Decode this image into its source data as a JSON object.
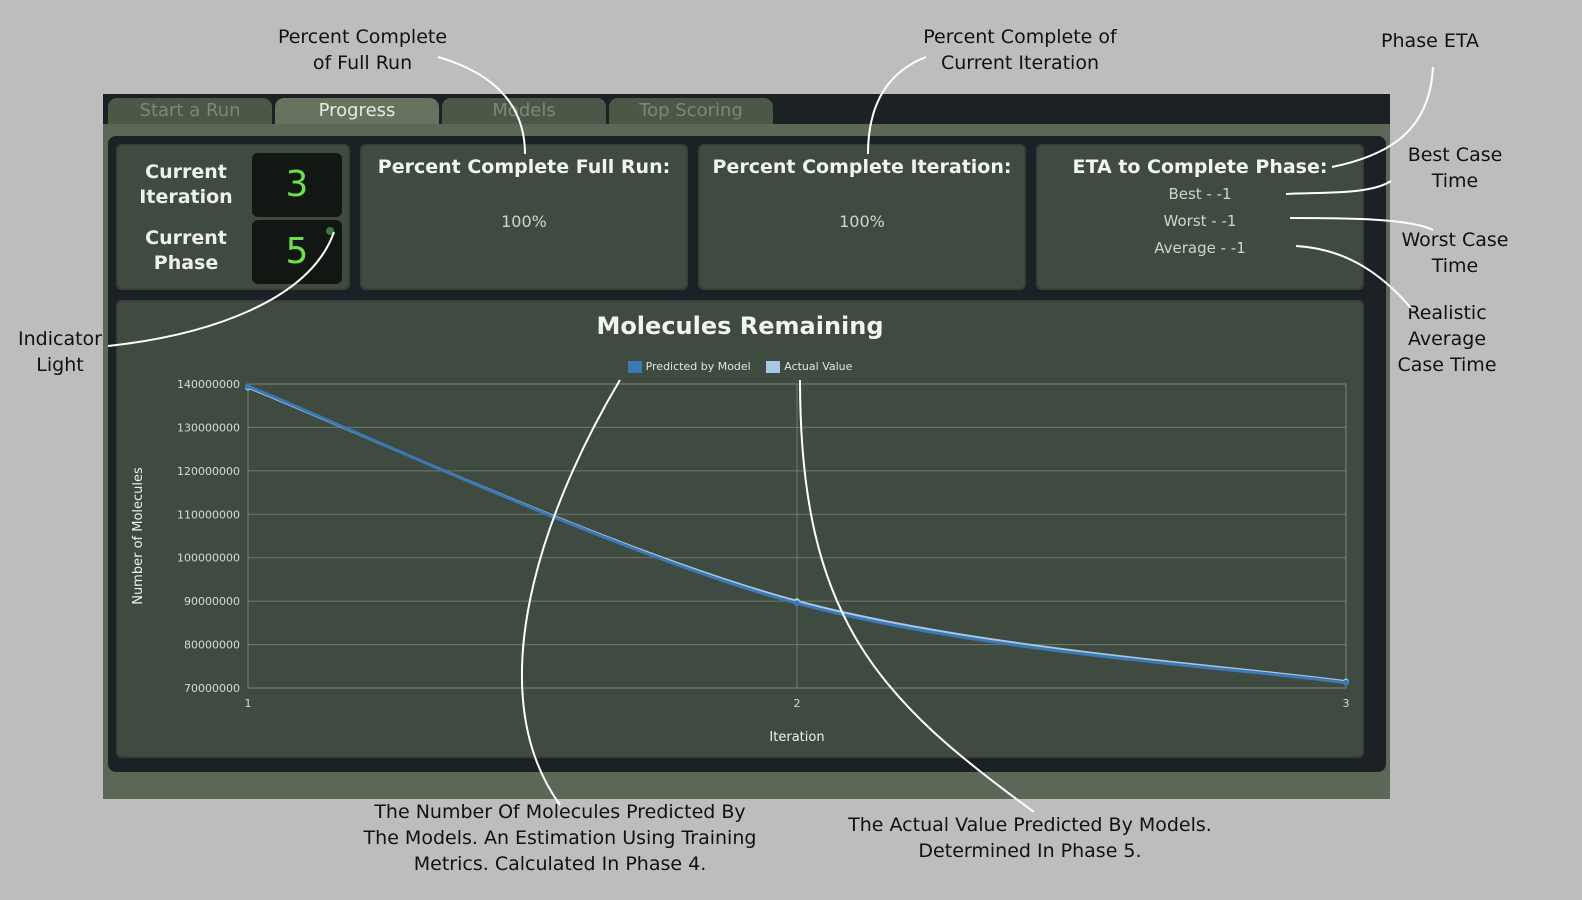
{
  "annotations": {
    "full_run": "Percent Complete\nof Full Run",
    "iteration": "Percent Complete of\nCurrent Iteration",
    "phase_eta": "Phase ETA",
    "best_case": "Best Case\nTime",
    "worst_case": "Worst Case\nTime",
    "average_case": "Realistic\nAverage\nCase Time",
    "indicator_light": "Indicator\nLight",
    "predicted_note": "The Number Of Molecules Predicted By\nThe Models. An Estimation Using Training\nMetrics. Calculated In Phase 4.",
    "actual_note": "The Actual Value Predicted By Models.\nDetermined In Phase 5."
  },
  "tabs": [
    {
      "label": "Start a Run",
      "active": false
    },
    {
      "label": "Progress",
      "active": true
    },
    {
      "label": "Models",
      "active": false
    },
    {
      "label": "Top Scoring",
      "active": false
    }
  ],
  "status": {
    "iteration_label": "Current\nIteration",
    "iteration_value": "3",
    "phase_label": "Current\nPhase",
    "phase_value": "5",
    "indicator_color": "#3a7a3c"
  },
  "full_run": {
    "title": "Percent Complete Full Run:",
    "value": "100%"
  },
  "iteration": {
    "title": "Percent Complete Iteration:",
    "value": "100%"
  },
  "eta": {
    "title": "ETA to Complete Phase:",
    "best": "Best - -1",
    "worst": "Worst - -1",
    "average": "Average - -1"
  },
  "colors": {
    "predicted": "#3a79b4",
    "actual": "#a9c8e6",
    "panel": "#3f4a40",
    "app_bg": "#5b6858"
  },
  "chart_data": {
    "type": "line",
    "title": "Molecules Remaining",
    "xlabel": "Iteration",
    "ylabel": "Number of Molecules",
    "x": [
      1,
      2,
      3
    ],
    "x_tick_labels": [
      "1",
      "2",
      "3"
    ],
    "y_tick_labels": [
      "140000000",
      "130000000",
      "120000000",
      "110000000",
      "100000000",
      "90000000",
      "80000000",
      "70000000"
    ],
    "ylim": [
      70000000,
      140000000
    ],
    "grid": true,
    "legend_position": "top-center",
    "series": [
      {
        "name": "Predicted by Model",
        "values": [
          139500000,
          89500000,
          71200000
        ]
      },
      {
        "name": "Actual Value",
        "values": [
          139200000,
          90000000,
          71500000
        ]
      }
    ]
  }
}
